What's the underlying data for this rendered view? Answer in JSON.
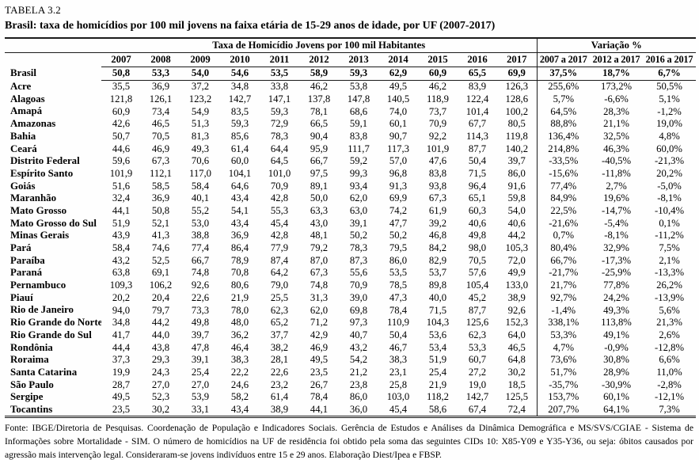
{
  "page": {
    "table_label": "TABELA 3.2",
    "title": "Brasil: taxa de homicídios por 100 mil jovens na faixa etária de 15-29 anos de idade, por UF (2007-2017)",
    "footnote": "Fonte: IBGE/Diretoria de Pesquisas. Coordenação de População e Indicadores Sociais. Gerência de Estudos e Análises da Dinâmica Demográfica e MS/SVS/CGIAE - Sistema de Informações sobre Mortalidade - SIM. O número de homicídios na UF de residência foi obtido pela soma das seguintes CIDs 10: X85-Y09 e Y35-Y36, ou seja: óbitos causados por agressão mais intervenção legal. Consideraram-se  jovens indivíduos entre 15 e 29 anos. Elaboração Diest/Ipea e FBSP."
  },
  "colors": {
    "text": "#000000",
    "background": "#ffffff",
    "border": "#1a1a1a"
  },
  "table": {
    "group_headers": {
      "rates": "Taxa de Homicídio Jovens por 100 mil Habitantes",
      "variation": "Variação %"
    },
    "year_columns": [
      "2007",
      "2008",
      "2009",
      "2010",
      "2011",
      "2012",
      "2013",
      "2014",
      "2015",
      "2016",
      "2017"
    ],
    "variation_columns": [
      "2007 a 2017",
      "2012 a 2017",
      "2016 a 2017"
    ],
    "rows": [
      {
        "label": "Brasil",
        "bold": true,
        "values": [
          "50,8",
          "53,3",
          "54,0",
          "54,6",
          "53,5",
          "58,9",
          "59,3",
          "62,9",
          "60,9",
          "65,5",
          "69,9"
        ],
        "variations": [
          "37,5%",
          "18,7%",
          "6,7%"
        ]
      },
      {
        "label": "Acre",
        "bold": false,
        "values": [
          "35,5",
          "36,9",
          "37,2",
          "34,8",
          "33,8",
          "46,2",
          "53,8",
          "49,5",
          "46,2",
          "83,9",
          "126,3"
        ],
        "variations": [
          "255,6%",
          "173,2%",
          "50,5%"
        ]
      },
      {
        "label": "Alagoas",
        "bold": false,
        "values": [
          "121,8",
          "126,1",
          "123,2",
          "142,7",
          "147,1",
          "137,8",
          "147,8",
          "140,5",
          "118,9",
          "122,4",
          "128,6"
        ],
        "variations": [
          "5,7%",
          "-6,6%",
          "5,1%"
        ]
      },
      {
        "label": "Amapá",
        "bold": false,
        "values": [
          "60,9",
          "73,4",
          "54,9",
          "83,5",
          "59,3",
          "78,1",
          "68,6",
          "74,0",
          "73,7",
          "101,4",
          "100,2"
        ],
        "variations": [
          "64,5%",
          "28,3%",
          "-1,2%"
        ]
      },
      {
        "label": "Amazonas",
        "bold": false,
        "values": [
          "42,6",
          "46,5",
          "51,3",
          "59,3",
          "72,9",
          "66,5",
          "59,1",
          "60,1",
          "70,9",
          "67,7",
          "80,5"
        ],
        "variations": [
          "88,8%",
          "21,1%",
          "19,0%"
        ]
      },
      {
        "label": "Bahia",
        "bold": false,
        "values": [
          "50,7",
          "70,5",
          "81,3",
          "85,6",
          "78,3",
          "90,4",
          "83,8",
          "90,7",
          "92,2",
          "114,3",
          "119,8"
        ],
        "variations": [
          "136,4%",
          "32,5%",
          "4,8%"
        ]
      },
      {
        "label": "Ceará",
        "bold": false,
        "values": [
          "44,6",
          "46,9",
          "49,3",
          "61,4",
          "64,4",
          "95,9",
          "111,7",
          "117,3",
          "101,9",
          "87,7",
          "140,2"
        ],
        "variations": [
          "214,8%",
          "46,3%",
          "60,0%"
        ]
      },
      {
        "label": "Distrito Federal",
        "bold": false,
        "values": [
          "59,6",
          "67,3",
          "70,6",
          "60,0",
          "64,5",
          "66,7",
          "59,2",
          "57,0",
          "47,6",
          "50,4",
          "39,7"
        ],
        "variations": [
          "-33,5%",
          "-40,5%",
          "-21,3%"
        ]
      },
      {
        "label": "Espírito Santo",
        "bold": false,
        "values": [
          "101,9",
          "112,1",
          "117,0",
          "104,1",
          "101,0",
          "97,5",
          "99,3",
          "96,8",
          "83,8",
          "71,5",
          "86,0"
        ],
        "variations": [
          "-15,6%",
          "-11,8%",
          "20,2%"
        ]
      },
      {
        "label": "Goiás",
        "bold": false,
        "values": [
          "51,6",
          "58,5",
          "58,4",
          "64,6",
          "70,9",
          "89,1",
          "93,4",
          "91,3",
          "93,8",
          "96,4",
          "91,6"
        ],
        "variations": [
          "77,4%",
          "2,7%",
          "-5,0%"
        ]
      },
      {
        "label": "Maranhão",
        "bold": false,
        "values": [
          "32,4",
          "36,9",
          "40,1",
          "43,4",
          "42,8",
          "50,0",
          "62,0",
          "69,9",
          "67,3",
          "65,1",
          "59,8"
        ],
        "variations": [
          "84,9%",
          "19,6%",
          "-8,1%"
        ]
      },
      {
        "label": "Mato Grosso",
        "bold": false,
        "values": [
          "44,1",
          "50,8",
          "55,2",
          "54,1",
          "55,3",
          "63,3",
          "63,0",
          "74,2",
          "61,9",
          "60,3",
          "54,0"
        ],
        "variations": [
          "22,5%",
          "-14,7%",
          "-10,4%"
        ]
      },
      {
        "label": "Mato Grosso do Sul",
        "bold": false,
        "values": [
          "51,9",
          "52,1",
          "53,0",
          "43,4",
          "45,4",
          "43,0",
          "39,1",
          "47,7",
          "39,2",
          "40,6",
          "40,6"
        ],
        "variations": [
          "-21,6%",
          "-5,4%",
          "0,1%"
        ]
      },
      {
        "label": "Minas Gerais",
        "bold": false,
        "values": [
          "43,9",
          "41,3",
          "38,8",
          "36,9",
          "42,8",
          "48,1",
          "50,2",
          "50,2",
          "46,8",
          "49,8",
          "44,2"
        ],
        "variations": [
          "0,7%",
          "-8,1%",
          "-11,2%"
        ]
      },
      {
        "label": "Pará",
        "bold": false,
        "values": [
          "58,4",
          "74,6",
          "77,4",
          "86,4",
          "77,9",
          "79,2",
          "78,3",
          "79,5",
          "84,2",
          "98,0",
          "105,3"
        ],
        "variations": [
          "80,4%",
          "32,9%",
          "7,5%"
        ]
      },
      {
        "label": "Paraíba",
        "bold": false,
        "values": [
          "43,2",
          "52,5",
          "66,7",
          "78,9",
          "87,4",
          "87,0",
          "87,3",
          "86,0",
          "82,9",
          "70,5",
          "72,0"
        ],
        "variations": [
          "66,7%",
          "-17,3%",
          "2,1%"
        ]
      },
      {
        "label": "Paraná",
        "bold": false,
        "values": [
          "63,8",
          "69,1",
          "74,8",
          "70,8",
          "64,2",
          "67,3",
          "55,6",
          "53,5",
          "53,7",
          "57,6",
          "49,9"
        ],
        "variations": [
          "-21,7%",
          "-25,9%",
          "-13,3%"
        ]
      },
      {
        "label": "Pernambuco",
        "bold": false,
        "values": [
          "109,3",
          "106,2",
          "92,6",
          "80,6",
          "79,0",
          "74,8",
          "70,9",
          "78,5",
          "89,8",
          "105,4",
          "133,0"
        ],
        "variations": [
          "21,7%",
          "77,8%",
          "26,2%"
        ]
      },
      {
        "label": "Piauí",
        "bold": false,
        "values": [
          "20,2",
          "20,4",
          "22,6",
          "21,9",
          "25,5",
          "31,3",
          "39,0",
          "47,3",
          "40,0",
          "45,2",
          "38,9"
        ],
        "variations": [
          "92,7%",
          "24,2%",
          "-13,9%"
        ]
      },
      {
        "label": "Rio de Janeiro",
        "bold": false,
        "values": [
          "94,0",
          "79,7",
          "73,3",
          "78,0",
          "62,3",
          "62,0",
          "69,8",
          "78,4",
          "71,5",
          "87,7",
          "92,6"
        ],
        "variations": [
          "-1,4%",
          "49,3%",
          "5,6%"
        ]
      },
      {
        "label": "Rio Grande do Norte",
        "bold": false,
        "values": [
          "34,8",
          "44,2",
          "49,8",
          "48,0",
          "65,2",
          "71,2",
          "97,3",
          "110,9",
          "104,3",
          "125,6",
          "152,3"
        ],
        "variations": [
          "338,1%",
          "113,8%",
          "21,3%"
        ]
      },
      {
        "label": "Rio Grande do Sul",
        "bold": false,
        "values": [
          "41,7",
          "44,0",
          "39,7",
          "36,2",
          "37,7",
          "42,9",
          "40,7",
          "50,4",
          "53,6",
          "62,3",
          "64,0"
        ],
        "variations": [
          "53,3%",
          "49,1%",
          "2,6%"
        ]
      },
      {
        "label": "Rondônia",
        "bold": false,
        "values": [
          "44,4",
          "43,8",
          "47,8",
          "46,4",
          "38,2",
          "46,9",
          "43,2",
          "46,7",
          "53,4",
          "53,3",
          "46,5"
        ],
        "variations": [
          "4,7%",
          "-0,9%",
          "-12,8%"
        ]
      },
      {
        "label": "Roraima",
        "bold": false,
        "values": [
          "37,3",
          "29,3",
          "39,1",
          "38,3",
          "28,1",
          "49,5",
          "54,2",
          "38,3",
          "51,9",
          "60,7",
          "64,8"
        ],
        "variations": [
          "73,6%",
          "30,8%",
          "6,6%"
        ]
      },
      {
        "label": "Santa Catarina",
        "bold": false,
        "values": [
          "19,9",
          "24,3",
          "25,4",
          "22,2",
          "22,6",
          "23,5",
          "21,2",
          "23,1",
          "25,4",
          "27,2",
          "30,2"
        ],
        "variations": [
          "51,7%",
          "28,9%",
          "11,0%"
        ]
      },
      {
        "label": "São Paulo",
        "bold": false,
        "values": [
          "28,7",
          "27,0",
          "27,0",
          "24,6",
          "23,2",
          "26,7",
          "23,8",
          "25,8",
          "21,9",
          "19,0",
          "18,5"
        ],
        "variations": [
          "-35,7%",
          "-30,9%",
          "-2,8%"
        ]
      },
      {
        "label": "Sergipe",
        "bold": false,
        "values": [
          "49,5",
          "52,3",
          "53,9",
          "58,2",
          "61,4",
          "78,4",
          "86,0",
          "103,0",
          "118,2",
          "142,7",
          "125,5"
        ],
        "variations": [
          "153,7%",
          "60,1%",
          "-12,1%"
        ]
      },
      {
        "label": "Tocantins",
        "bold": false,
        "values": [
          "23,5",
          "30,2",
          "33,1",
          "43,4",
          "38,9",
          "44,1",
          "36,0",
          "45,4",
          "58,6",
          "67,4",
          "72,4"
        ],
        "variations": [
          "207,7%",
          "64,1%",
          "7,3%"
        ]
      }
    ]
  }
}
